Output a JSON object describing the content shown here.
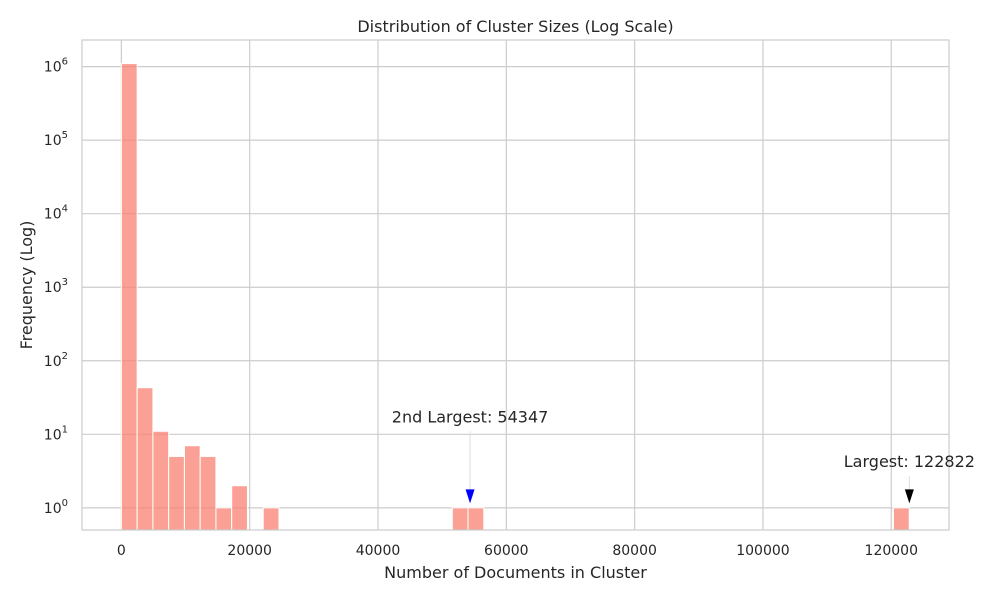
{
  "chart_data": {
    "type": "bar",
    "title": "Distribution of Cluster Sizes (Log Scale)",
    "xlabel": "Number of Documents in Cluster",
    "ylabel": "Frequency (Log)",
    "xlim": [
      -6141,
      129000
    ],
    "ylim": [
      0.5,
      2300000
    ],
    "yscale": "log",
    "grid": true,
    "x_ticks": [
      0,
      20000,
      40000,
      60000,
      80000,
      100000,
      120000
    ],
    "y_ticks": [
      {
        "value": 1,
        "base": "10",
        "exp": "0"
      },
      {
        "value": 10,
        "base": "10",
        "exp": "1"
      },
      {
        "value": 100,
        "base": "10",
        "exp": "2"
      },
      {
        "value": 1000,
        "base": "10",
        "exp": "3"
      },
      {
        "value": 10000,
        "base": "10",
        "exp": "4"
      },
      {
        "value": 100000,
        "base": "10",
        "exp": "5"
      },
      {
        "value": 1000000,
        "base": "10",
        "exp": "6"
      }
    ],
    "bin_width": 2456,
    "bins": [
      {
        "x_start": 0,
        "count": 1100000
      },
      {
        "x_start": 2456,
        "count": 43
      },
      {
        "x_start": 4912,
        "count": 11
      },
      {
        "x_start": 7368,
        "count": 5
      },
      {
        "x_start": 9824,
        "count": 7
      },
      {
        "x_start": 12280,
        "count": 5
      },
      {
        "x_start": 14736,
        "count": 1
      },
      {
        "x_start": 17192,
        "count": 2
      },
      {
        "x_start": 22104,
        "count": 1
      },
      {
        "x_start": 51576,
        "count": 1
      },
      {
        "x_start": 54032,
        "count": 1
      },
      {
        "x_start": 120344,
        "count": 1
      }
    ],
    "annotations": [
      {
        "text": "2nd Largest: 54347",
        "x": 54347,
        "arrow_y": 1.15,
        "text_y": 17,
        "color": "#0000ff"
      },
      {
        "text": "Largest: 122822",
        "x": 122822,
        "arrow_y": 1.15,
        "text_y": 4.2,
        "color": "#000000"
      }
    ],
    "colors": {
      "bar": "#fa8072",
      "grid": "#cccccc",
      "axes": "#cccccc",
      "text": "#262626"
    }
  }
}
